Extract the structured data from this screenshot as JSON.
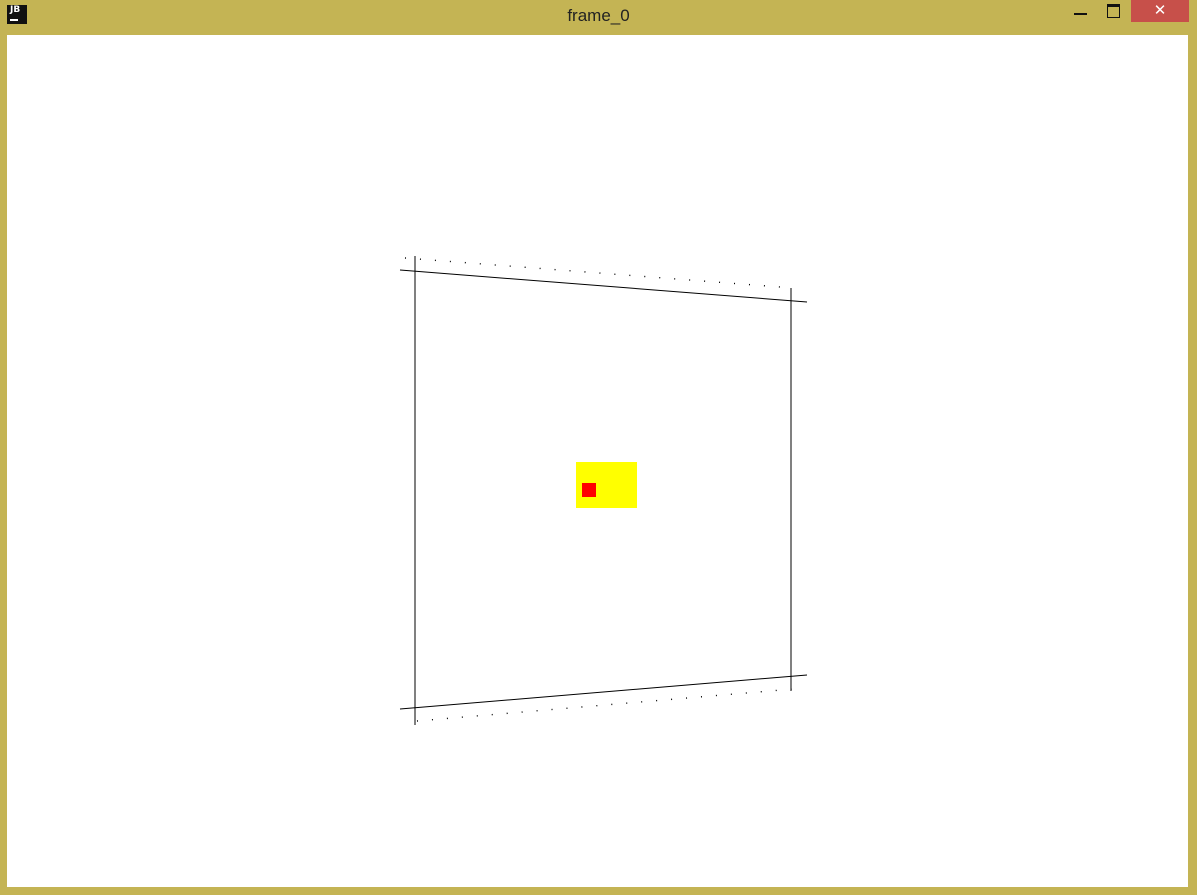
{
  "window": {
    "title": "frame_0",
    "app_icon_label": "JB",
    "controls": {
      "minimize_icon": "minimize-icon",
      "maximize_icon": "maximize-icon",
      "close_icon": "close-icon"
    },
    "colors": {
      "frame": "#c4b454",
      "close": "#c7504a",
      "canvas": "#ffffff"
    }
  },
  "scene": {
    "colors": {
      "lines": "#000000",
      "highlight": "#ffff00",
      "marker": "#ff0000"
    }
  }
}
